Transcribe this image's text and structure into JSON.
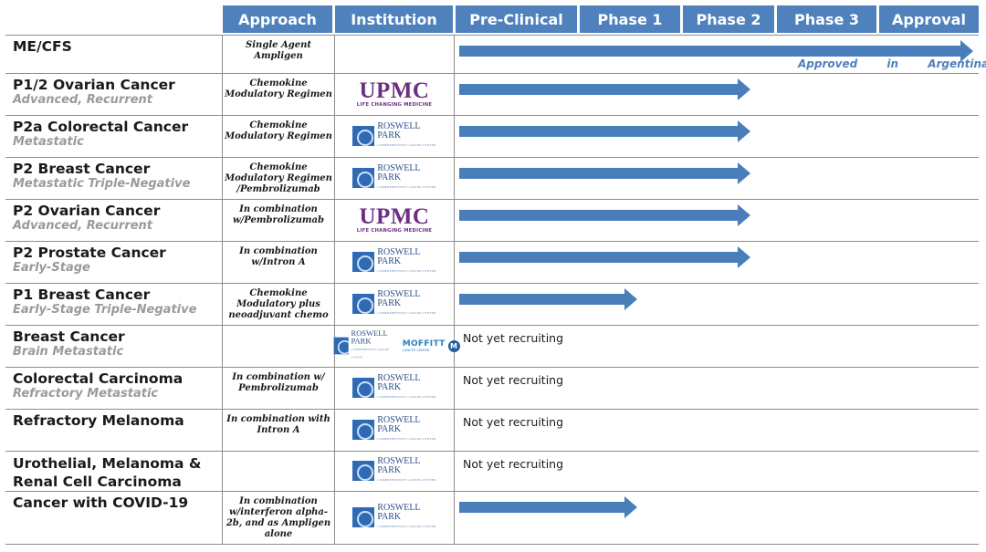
{
  "header": {
    "approach": "Approach",
    "institution": "Institution",
    "preclinical": "Pre-Clinical",
    "phase1": "Phase 1",
    "phase2": "Phase 2",
    "phase3": "Phase 3",
    "approval": "Approval"
  },
  "colors": {
    "header": "#4f81bd",
    "arrow": "#4a7ebb",
    "upmc": "#6b2f82",
    "subtitle": "#9a9a9a"
  },
  "stages": [
    "Pre-Clinical",
    "Phase 1",
    "Phase 2",
    "Phase 3",
    "Approval"
  ],
  "rows": [
    {
      "name": "ME/CFS",
      "sub": "",
      "approach": "Single Agent Ampligen",
      "institution": [],
      "progress_stage": "Approval",
      "status": "",
      "note": "Approved in Argentina"
    },
    {
      "name": "P1/2 Ovarian Cancer",
      "sub": "Advanced, Recurrent",
      "approach": "Chemokine Modulatory Regimen",
      "institution": [
        "upmc"
      ],
      "progress_stage": "Phase 2",
      "status": ""
    },
    {
      "name": "P2a Colorectal Cancer",
      "sub": "Metastatic",
      "approach": "Chemokine Modulatory Regimen",
      "institution": [
        "roswell-park"
      ],
      "progress_stage": "Phase 2",
      "status": ""
    },
    {
      "name": "P2 Breast Cancer",
      "sub": "Metastatic Triple-Negative",
      "approach": "Chemokine Modulatory Regimen /Pembrolizumab",
      "institution": [
        "roswell-park"
      ],
      "progress_stage": "Phase 2",
      "status": ""
    },
    {
      "name": "P2 Ovarian Cancer",
      "sub": "Advanced, Recurrent",
      "approach": "In combination w/Pembrolizumab",
      "institution": [
        "upmc"
      ],
      "progress_stage": "Phase 2",
      "status": ""
    },
    {
      "name": "P2 Prostate Cancer",
      "sub": "Early-Stage",
      "approach": "In combination w/Intron A",
      "institution": [
        "roswell-park"
      ],
      "progress_stage": "Phase 2",
      "status": ""
    },
    {
      "name": "P1 Breast Cancer",
      "sub": "Early-Stage Triple-Negative",
      "approach": "Chemokine Modulatory plus neoadjuvant chemo",
      "institution": [
        "roswell-park"
      ],
      "progress_stage": "Phase 1",
      "status": ""
    },
    {
      "name": "Breast Cancer",
      "sub": "Brain Metastatic",
      "approach": "",
      "institution": [
        "roswell-park",
        "moffitt"
      ],
      "progress_stage": "",
      "status": "Not yet recruiting"
    },
    {
      "name": "Colorectal Carcinoma",
      "sub": "Refractory Metastatic",
      "approach": "In combination w/ Pembrolizumab",
      "institution": [
        "roswell-park"
      ],
      "progress_stage": "",
      "status": "Not yet recruiting"
    },
    {
      "name": "Refractory Melanoma",
      "sub": "",
      "approach": "In combination with Intron A",
      "institution": [
        "roswell-park"
      ],
      "progress_stage": "",
      "status": "Not yet recruiting"
    },
    {
      "name": "Urothelial, Melanoma & Renal Cell Carcinoma",
      "sub": "",
      "approach": "",
      "institution": [
        "roswell-park"
      ],
      "progress_stage": "",
      "status": "Not yet recruiting"
    },
    {
      "name": "Cancer with COVID-19",
      "sub": "",
      "approach": "In combination w/interferon alpha-2b, and as Ampligen alone",
      "institution": [
        "roswell-park"
      ],
      "progress_stage": "Phase 1",
      "status": ""
    }
  ],
  "logos": {
    "upmc": {
      "word": "UPMC",
      "tag": "LIFE CHANGING MEDICINE"
    },
    "roswell-park": {
      "line1": "ROSWELL",
      "line2": "PARK",
      "small": "COMPREHENSIVE CANCER CENTER"
    },
    "moffitt": {
      "word": "MOFFITT",
      "sub": "CANCER CENTER",
      "mark": "M"
    }
  }
}
